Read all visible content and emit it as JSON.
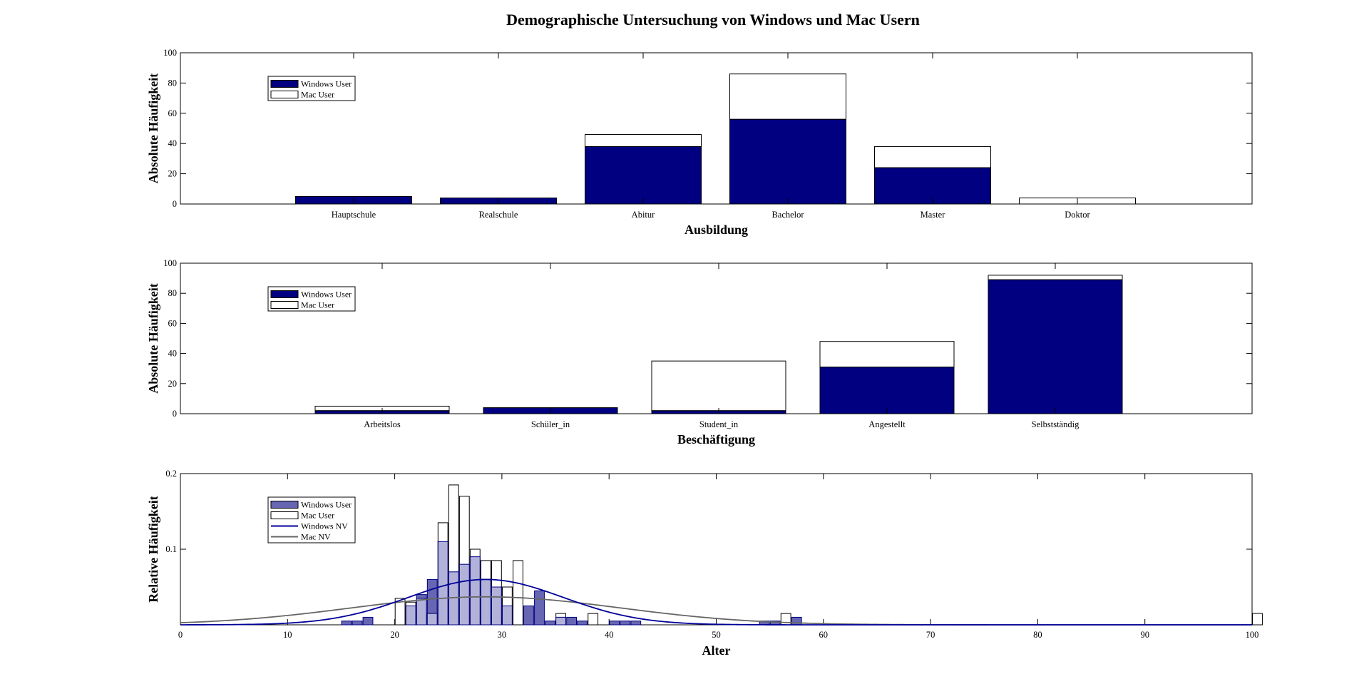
{
  "figure": {
    "title": "Demographische Untersuchung von Windows und Mac Usern"
  },
  "colors": {
    "windows": "#000080",
    "windows_hist": "#6666B3",
    "mac_fill": "#FFFFFF",
    "overlap": "#B2B2D9",
    "windows_nv": "#000099",
    "mac_nv": "#666666"
  },
  "chart_data": [
    {
      "type": "bar",
      "stacked": true,
      "categories": [
        "Hauptschule",
        "Realschule",
        "Abitur",
        "Bachelor",
        "Master",
        "Doktor"
      ],
      "series": [
        {
          "name": "Windows User",
          "values": [
            5,
            4,
            38,
            56,
            24,
            0
          ]
        },
        {
          "name": "Mac User",
          "values": [
            0,
            0,
            8,
            30,
            14,
            4
          ]
        }
      ],
      "xlabel": "Ausbildung",
      "ylabel": "Absolute Häufigkeit",
      "ylim": [
        0,
        100
      ],
      "yticks": [
        0,
        20,
        40,
        60,
        80,
        100
      ],
      "grid": false,
      "legend": "top-left"
    },
    {
      "type": "bar",
      "stacked": true,
      "categories": [
        "Arbeitslos",
        "Schüler_in",
        "Student_in",
        "Angestellt",
        "Selbstständig"
      ],
      "series": [
        {
          "name": "Windows User",
          "values": [
            2,
            4,
            2,
            31,
            89
          ]
        },
        {
          "name": "Mac User",
          "values": [
            3,
            0,
            33,
            17,
            3
          ]
        }
      ],
      "xlabel": "Beschäftigung",
      "ylabel": "Absolute Häufigkeit",
      "ylim": [
        0,
        100
      ],
      "yticks": [
        0,
        20,
        40,
        60,
        80,
        100
      ],
      "grid": false,
      "legend": "top-left"
    },
    {
      "type": "bar",
      "subtype": "histogram-with-normal-fit",
      "bin_width": 1,
      "series": [
        {
          "name": "Windows User",
          "bins": [
            [
              15,
              0.005
            ],
            [
              16,
              0.005
            ],
            [
              17,
              0.01
            ],
            [
              21,
              0.025
            ],
            [
              22,
              0.04
            ],
            [
              23,
              0.06
            ],
            [
              24,
              0.11
            ],
            [
              25,
              0.07
            ],
            [
              26,
              0.08
            ],
            [
              27,
              0.09
            ],
            [
              28,
              0.06
            ],
            [
              29,
              0.05
            ],
            [
              30,
              0.025
            ],
            [
              32,
              0.025
            ],
            [
              33,
              0.045
            ],
            [
              34,
              0.005
            ],
            [
              35,
              0.01
            ],
            [
              36,
              0.01
            ],
            [
              37,
              0.005
            ],
            [
              40,
              0.005
            ],
            [
              41,
              0.005
            ],
            [
              42,
              0.005
            ],
            [
              54,
              0.005
            ],
            [
              55,
              0.005
            ],
            [
              57,
              0.01
            ]
          ]
        },
        {
          "name": "Mac User",
          "bins": [
            [
              20,
              0.035
            ],
            [
              21,
              0.03
            ],
            [
              22,
              0.035
            ],
            [
              23,
              0.015
            ],
            [
              24,
              0.135
            ],
            [
              25,
              0.185
            ],
            [
              26,
              0.17
            ],
            [
              27,
              0.1
            ],
            [
              28,
              0.085
            ],
            [
              29,
              0.085
            ],
            [
              30,
              0.05
            ],
            [
              31,
              0.085
            ],
            [
              35,
              0.015
            ],
            [
              38,
              0.015
            ],
            [
              56,
              0.015
            ],
            [
              100,
              0.015
            ]
          ]
        },
        {
          "name": "Windows NV",
          "mean": 28.5,
          "std": 7.2,
          "peak": 0.06
        },
        {
          "name": "Mac NV",
          "mean": 28.5,
          "std": 12.5,
          "peak": 0.037
        }
      ],
      "xlabel": "Alter",
      "ylabel": "Relative Häufigkeit",
      "xlim": [
        0,
        100
      ],
      "ylim": [
        0,
        0.2
      ],
      "xticks": [
        0,
        10,
        20,
        30,
        40,
        50,
        60,
        70,
        80,
        90,
        100
      ],
      "yticks": [
        0.1,
        0.2
      ],
      "grid": false,
      "legend": "top-left"
    }
  ]
}
